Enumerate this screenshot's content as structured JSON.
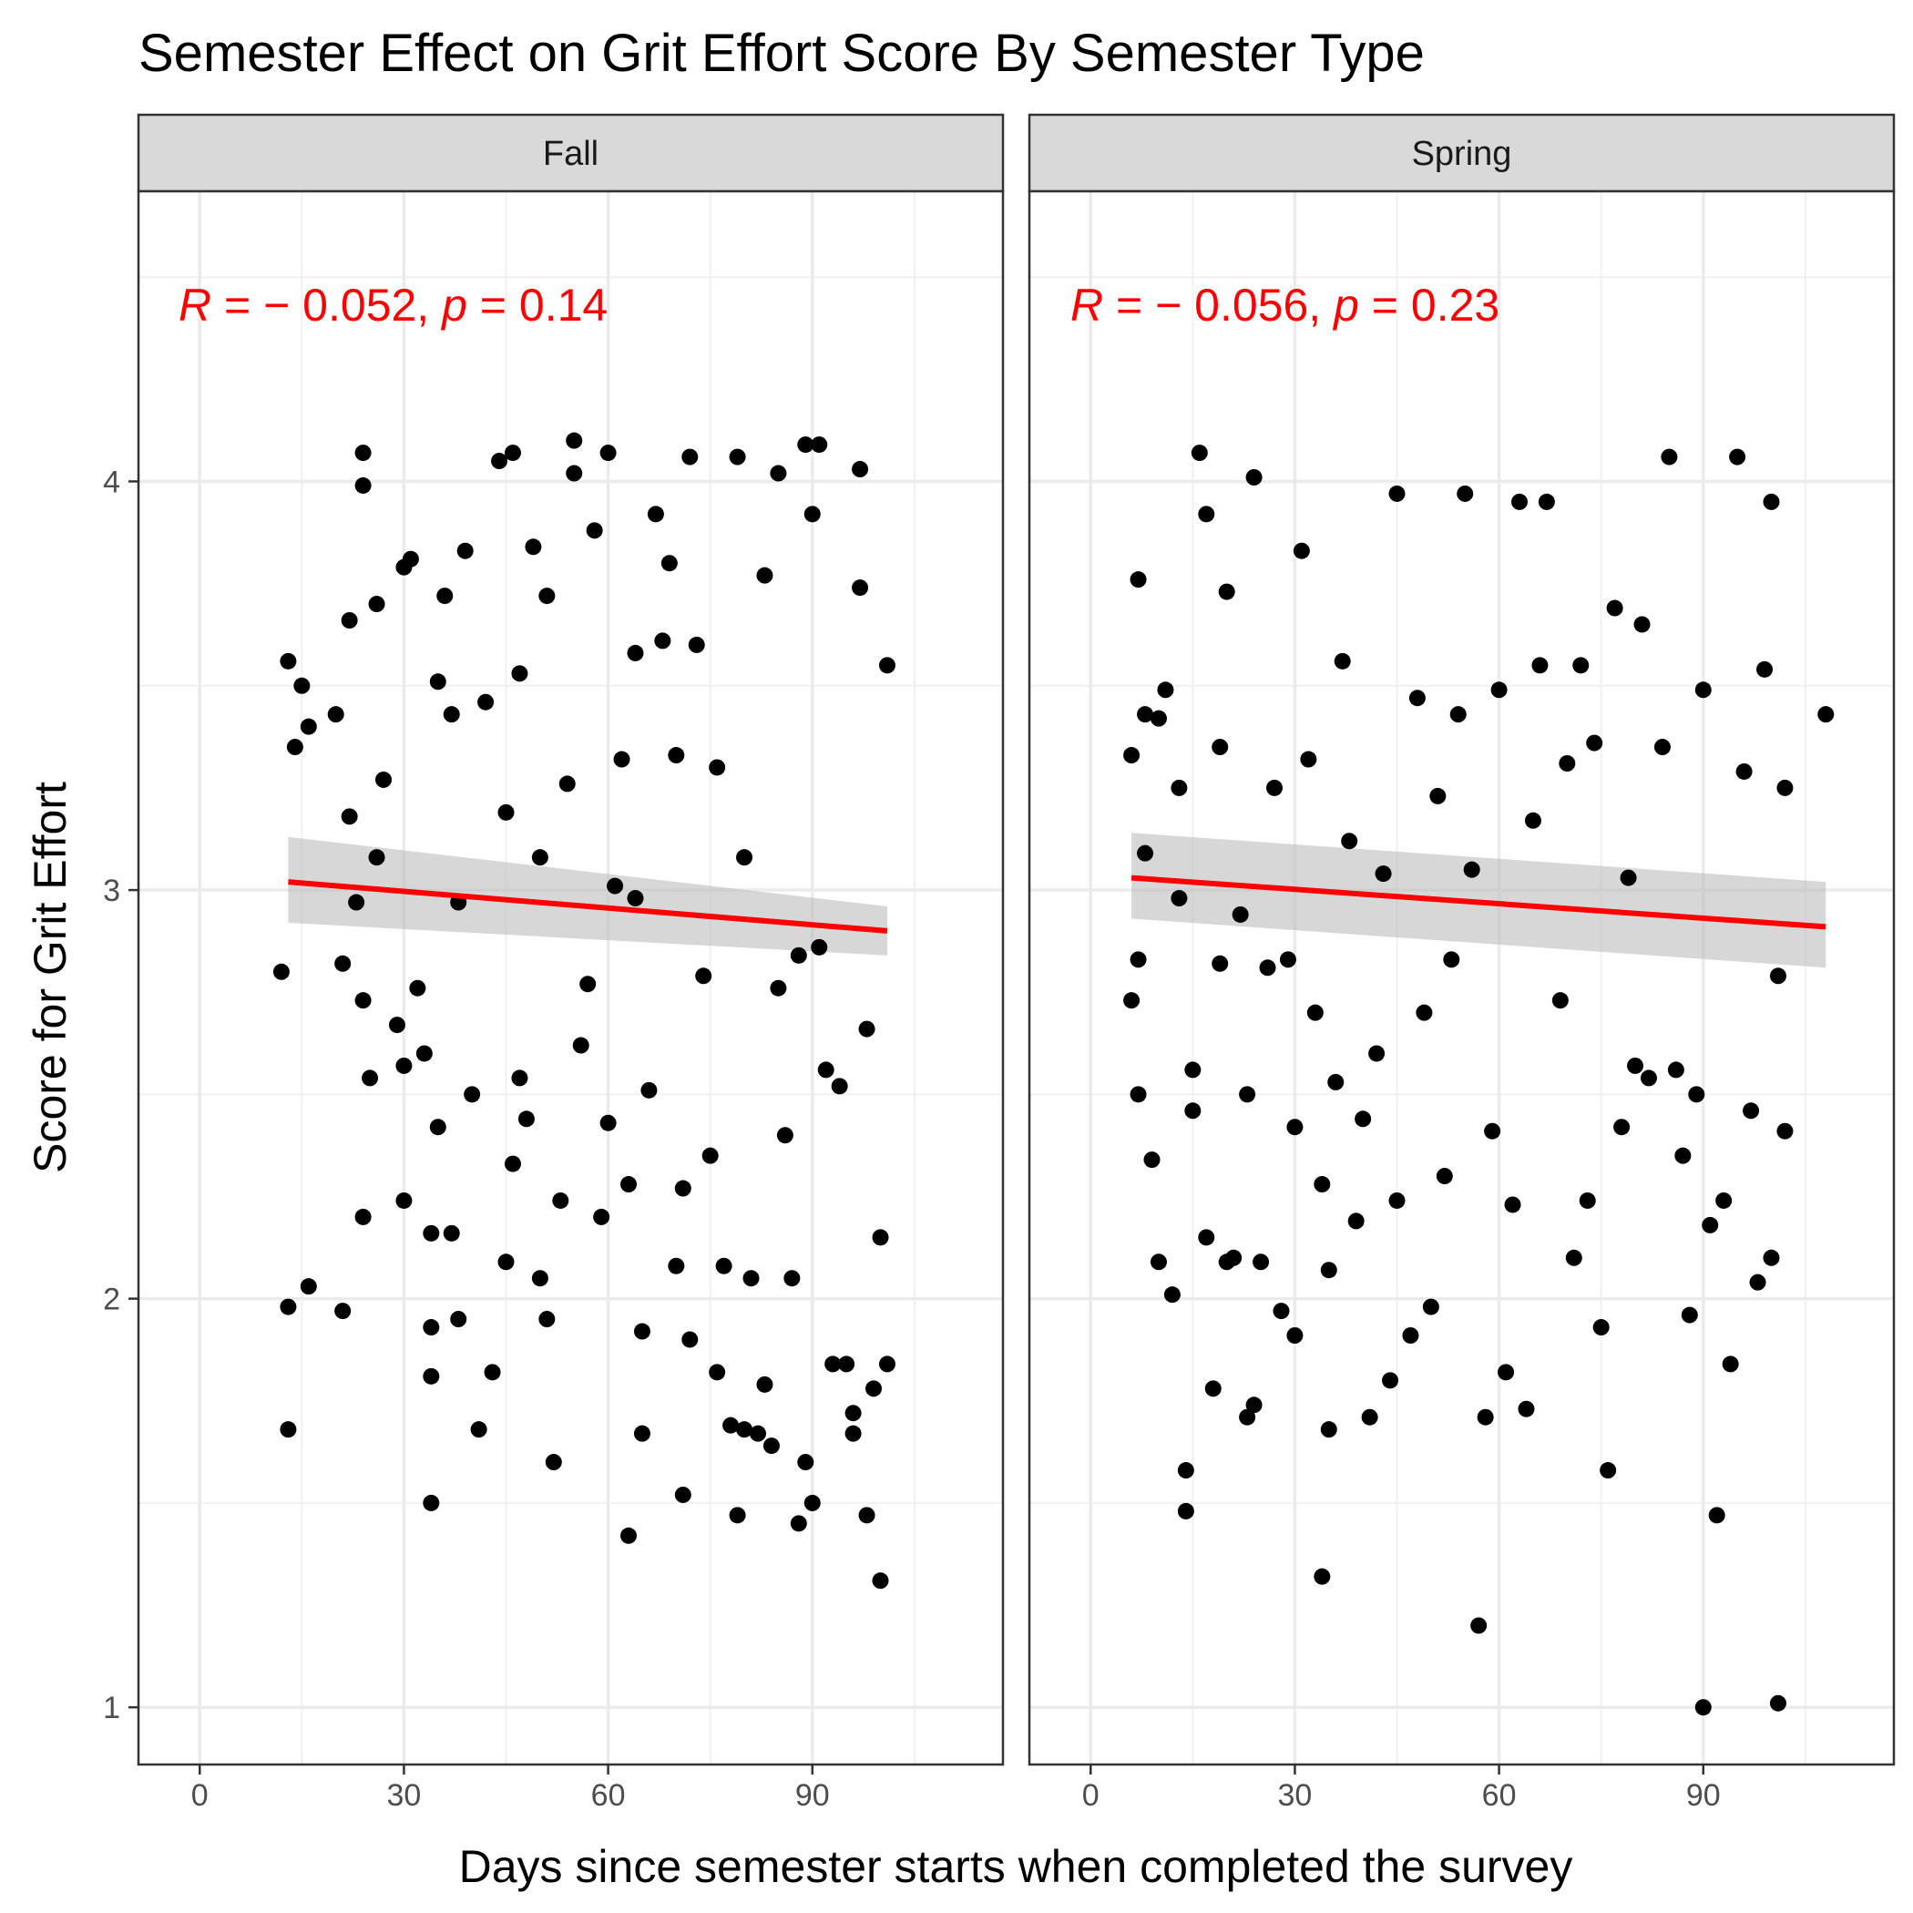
{
  "chart_data": {
    "type": "scatter",
    "title": "Semester Effect on Grit Effort Score By Semester Type",
    "xlabel": "Days since semester starts when completed the survey",
    "ylabel": "Score for Grit Effort",
    "xlim": [
      -9,
      118
    ],
    "ylim": [
      0.86,
      4.71
    ],
    "x_ticks": [
      0,
      30,
      60,
      90
    ],
    "y_ticks": [
      1,
      2,
      3,
      4
    ],
    "x_minor_ticks": [
      15,
      45,
      75,
      105
    ],
    "y_minor_ticks": [
      1.5,
      2.5,
      3.5,
      4.5
    ],
    "grid": true,
    "theme": "bw",
    "colors": {
      "points": "#000000",
      "fit_line": "#ff0000",
      "confidence_band": "#bdbdbd",
      "strip_fill": "#d9d9d9",
      "annotation": "#ff0000"
    },
    "panels": [
      {
        "label": "Fall",
        "annotation": {
          "r_symbol": "R",
          "r_text": " = − 0.052, ",
          "p_symbol": "p",
          "p_text": " = 0.14"
        },
        "fit": {
          "x": [
            13,
            101
          ],
          "y": [
            3.02,
            2.9
          ],
          "ci_low": [
            2.92,
            2.84
          ],
          "ci_high": [
            3.13,
            2.96
          ]
        },
        "points_sample": [
          [
            13,
            1.68
          ],
          [
            13,
            1.98
          ],
          [
            13,
            3.56
          ],
          [
            12,
            2.8
          ],
          [
            14,
            3.35
          ],
          [
            15,
            3.5
          ],
          [
            16,
            2.03
          ],
          [
            16,
            3.4
          ],
          [
            20,
            3.43
          ],
          [
            21,
            1.97
          ],
          [
            21,
            2.82
          ],
          [
            22,
            3.18
          ],
          [
            22,
            3.66
          ],
          [
            23,
            2.97
          ],
          [
            24,
            2.2
          ],
          [
            24,
            2.73
          ],
          [
            24,
            4.07
          ],
          [
            24,
            3.99
          ],
          [
            25,
            2.54
          ],
          [
            26,
            3.08
          ],
          [
            26,
            3.7
          ],
          [
            27,
            3.27
          ],
          [
            29,
            2.67
          ],
          [
            30,
            2.57
          ],
          [
            30,
            2.24
          ],
          [
            30,
            3.79
          ],
          [
            31,
            3.81
          ],
          [
            32,
            2.76
          ],
          [
            33,
            2.6
          ],
          [
            34,
            2.16
          ],
          [
            34,
            1.81
          ],
          [
            34,
            1.93
          ],
          [
            34,
            1.5
          ],
          [
            35,
            3.51
          ],
          [
            35,
            2.42
          ],
          [
            36,
            3.72
          ],
          [
            37,
            2.16
          ],
          [
            37,
            3.43
          ],
          [
            38,
            1.95
          ],
          [
            38,
            2.97
          ],
          [
            39,
            3.83
          ],
          [
            40,
            2.5
          ],
          [
            41,
            1.68
          ],
          [
            42,
            3.46
          ],
          [
            43,
            1.82
          ],
          [
            44,
            4.05
          ],
          [
            45,
            2.09
          ],
          [
            45,
            3.19
          ],
          [
            46,
            2.33
          ],
          [
            46,
            4.07
          ],
          [
            47,
            2.54
          ],
          [
            47,
            3.53
          ],
          [
            48,
            2.44
          ],
          [
            49,
            3.84
          ],
          [
            50,
            2.05
          ],
          [
            50,
            3.08
          ],
          [
            51,
            1.95
          ],
          [
            51,
            3.72
          ],
          [
            52,
            1.6
          ],
          [
            53,
            2.24
          ],
          [
            54,
            3.26
          ],
          [
            55,
            4.02
          ],
          [
            55,
            4.1
          ],
          [
            56,
            2.62
          ],
          [
            57,
            2.77
          ],
          [
            58,
            3.88
          ],
          [
            59,
            2.2
          ],
          [
            60,
            2.43
          ],
          [
            60,
            4.07
          ],
          [
            61,
            3.01
          ],
          [
            62,
            3.32
          ],
          [
            63,
            1.42
          ],
          [
            63,
            2.28
          ],
          [
            64,
            2.98
          ],
          [
            64,
            3.58
          ],
          [
            65,
            1.92
          ],
          [
            65,
            1.67
          ],
          [
            66,
            2.51
          ],
          [
            67,
            3.92
          ],
          [
            68,
            3.61
          ],
          [
            69,
            3.8
          ],
          [
            70,
            2.08
          ],
          [
            70,
            3.33
          ],
          [
            71,
            1.52
          ],
          [
            71,
            2.27
          ],
          [
            72,
            1.9
          ],
          [
            72,
            4.06
          ],
          [
            73,
            3.6
          ],
          [
            74,
            2.79
          ],
          [
            75,
            2.35
          ],
          [
            76,
            1.82
          ],
          [
            76,
            3.3
          ],
          [
            77,
            2.08
          ],
          [
            78,
            1.69
          ],
          [
            79,
            1.47
          ],
          [
            79,
            4.06
          ],
          [
            80,
            1.68
          ],
          [
            80,
            3.08
          ],
          [
            81,
            2.05
          ],
          [
            82,
            1.67
          ],
          [
            83,
            3.77
          ],
          [
            83,
            1.79
          ],
          [
            84,
            1.64
          ],
          [
            85,
            2.76
          ],
          [
            85,
            4.02
          ],
          [
            86,
            2.4
          ],
          [
            87,
            2.05
          ],
          [
            88,
            2.84
          ],
          [
            88,
            1.45
          ],
          [
            89,
            1.6
          ],
          [
            89,
            4.09
          ],
          [
            90,
            1.5
          ],
          [
            90,
            3.92
          ],
          [
            91,
            4.09
          ],
          [
            91,
            2.86
          ],
          [
            92,
            2.56
          ],
          [
            93,
            1.84
          ],
          [
            94,
            2.52
          ],
          [
            95,
            1.84
          ],
          [
            96,
            1.67
          ],
          [
            96,
            1.72
          ],
          [
            97,
            3.74
          ],
          [
            97,
            4.03
          ],
          [
            98,
            1.47
          ],
          [
            98,
            2.66
          ],
          [
            99,
            1.78
          ],
          [
            100,
            1.31
          ],
          [
            100,
            2.15
          ],
          [
            101,
            1.84
          ],
          [
            101,
            3.55
          ]
        ]
      },
      {
        "label": "Spring",
        "annotation": {
          "r_symbol": "R",
          "r_text": " = − 0.056, ",
          "p_symbol": "p",
          "p_text": " = 0.23"
        },
        "fit": {
          "x": [
            6,
            108
          ],
          "y": [
            3.03,
            2.91
          ],
          "ci_low": [
            2.93,
            2.81
          ],
          "ci_high": [
            3.14,
            3.02
          ]
        },
        "points_sample": [
          [
            6,
            2.73
          ],
          [
            6,
            3.33
          ],
          [
            7,
            3.76
          ],
          [
            7,
            2.83
          ],
          [
            7,
            2.5
          ],
          [
            8,
            3.43
          ],
          [
            8,
            3.09
          ],
          [
            9,
            2.34
          ],
          [
            10,
            2.09
          ],
          [
            10,
            3.42
          ],
          [
            11,
            3.49
          ],
          [
            12,
            2.01
          ],
          [
            13,
            3.25
          ],
          [
            13,
            2.98
          ],
          [
            14,
            1.48
          ],
          [
            14,
            1.58
          ],
          [
            15,
            2.56
          ],
          [
            15,
            2.46
          ],
          [
            16,
            4.07
          ],
          [
            17,
            3.92
          ],
          [
            17,
            2.15
          ],
          [
            18,
            1.78
          ],
          [
            19,
            2.82
          ],
          [
            19,
            3.35
          ],
          [
            20,
            3.73
          ],
          [
            20,
            2.09
          ],
          [
            21,
            2.1
          ],
          [
            22,
            2.94
          ],
          [
            23,
            1.71
          ],
          [
            23,
            2.5
          ],
          [
            24,
            1.74
          ],
          [
            24,
            4.01
          ],
          [
            25,
            2.09
          ],
          [
            26,
            2.81
          ],
          [
            27,
            3.25
          ],
          [
            28,
            1.97
          ],
          [
            29,
            2.83
          ],
          [
            30,
            1.91
          ],
          [
            30,
            2.42
          ],
          [
            31,
            3.83
          ],
          [
            32,
            3.32
          ],
          [
            33,
            2.7
          ],
          [
            34,
            1.32
          ],
          [
            34,
            2.28
          ],
          [
            35,
            1.68
          ],
          [
            35,
            2.07
          ],
          [
            36,
            2.53
          ],
          [
            37,
            3.56
          ],
          [
            38,
            3.12
          ],
          [
            39,
            2.19
          ],
          [
            40,
            2.44
          ],
          [
            41,
            1.71
          ],
          [
            42,
            2.6
          ],
          [
            43,
            3.04
          ],
          [
            44,
            1.8
          ],
          [
            45,
            2.24
          ],
          [
            45,
            3.97
          ],
          [
            47,
            1.91
          ],
          [
            48,
            3.47
          ],
          [
            49,
            2.7
          ],
          [
            50,
            1.98
          ],
          [
            51,
            3.23
          ],
          [
            52,
            2.3
          ],
          [
            53,
            2.83
          ],
          [
            54,
            3.43
          ],
          [
            55,
            3.97
          ],
          [
            56,
            3.05
          ],
          [
            57,
            1.2
          ],
          [
            58,
            1.71
          ],
          [
            59,
            2.41
          ],
          [
            60,
            3.49
          ],
          [
            61,
            1.82
          ],
          [
            62,
            2.23
          ],
          [
            63,
            3.95
          ],
          [
            64,
            1.73
          ],
          [
            65,
            3.17
          ],
          [
            66,
            3.55
          ],
          [
            67,
            3.95
          ],
          [
            69,
            2.73
          ],
          [
            70,
            3.31
          ],
          [
            71,
            2.1
          ],
          [
            72,
            3.55
          ],
          [
            73,
            2.24
          ],
          [
            74,
            3.36
          ],
          [
            75,
            1.93
          ],
          [
            76,
            1.58
          ],
          [
            77,
            3.69
          ],
          [
            78,
            2.42
          ],
          [
            79,
            3.03
          ],
          [
            80,
            2.57
          ],
          [
            81,
            3.65
          ],
          [
            82,
            2.54
          ],
          [
            84,
            3.35
          ],
          [
            85,
            4.06
          ],
          [
            86,
            2.56
          ],
          [
            87,
            2.35
          ],
          [
            88,
            1.96
          ],
          [
            89,
            2.5
          ],
          [
            90,
            1.0
          ],
          [
            90,
            3.49
          ],
          [
            91,
            2.18
          ],
          [
            92,
            1.47
          ],
          [
            93,
            2.24
          ],
          [
            94,
            1.84
          ],
          [
            95,
            4.06
          ],
          [
            96,
            3.29
          ],
          [
            97,
            2.46
          ],
          [
            98,
            2.04
          ],
          [
            99,
            3.54
          ],
          [
            100,
            3.95
          ],
          [
            100,
            2.1
          ],
          [
            101,
            1.01
          ],
          [
            101,
            2.79
          ],
          [
            102,
            2.41
          ],
          [
            102,
            3.25
          ],
          [
            108,
            3.43
          ]
        ]
      }
    ]
  }
}
